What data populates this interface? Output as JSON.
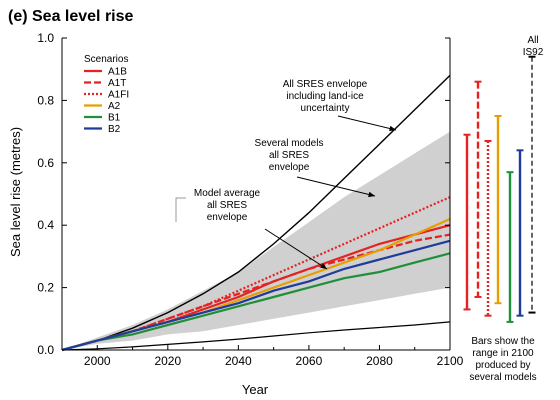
{
  "chart_data": {
    "type": "area",
    "title": "(e) Sea level rise",
    "xlabel": "Year",
    "ylabel": "Sea level rise (metres)",
    "xlim": [
      1990,
      2100
    ],
    "ylim": [
      0,
      1.0
    ],
    "xticks": [
      2000,
      2020,
      2040,
      2060,
      2080,
      2100
    ],
    "yticks": [
      0.0,
      0.2,
      0.4,
      0.6,
      0.8,
      1.0
    ],
    "grid": false,
    "legend_title": "Scenarios",
    "legend_position": "top-left",
    "envelopes": [
      {
        "label": "Several models all SRES envelope",
        "color": "#d0d0d0",
        "x": [
          1990,
          2000,
          2010,
          2020,
          2030,
          2040,
          2050,
          2060,
          2070,
          2080,
          2090,
          2100
        ],
        "lower": [
          0.0,
          0.02,
          0.03,
          0.05,
          0.06,
          0.08,
          0.1,
          0.12,
          0.14,
          0.16,
          0.18,
          0.2
        ],
        "upper": [
          0.0,
          0.04,
          0.08,
          0.13,
          0.19,
          0.25,
          0.33,
          0.41,
          0.49,
          0.56,
          0.63,
          0.7
        ]
      },
      {
        "label": "All SRES envelope including land-ice uncertainty",
        "color": "#000000",
        "x": [
          1990,
          2000,
          2010,
          2020,
          2030,
          2040,
          2050,
          2060,
          2070,
          2080,
          2090,
          2100
        ],
        "lower": [
          0.0,
          0.004,
          0.01,
          0.018,
          0.026,
          0.035,
          0.045,
          0.055,
          0.064,
          0.072,
          0.08,
          0.09
        ],
        "upper": [
          0.0,
          0.03,
          0.07,
          0.12,
          0.18,
          0.25,
          0.34,
          0.44,
          0.55,
          0.66,
          0.77,
          0.88
        ]
      }
    ],
    "series": [
      {
        "name": "A1B",
        "color": "#e32222",
        "dash": "solid",
        "x": [
          1990,
          2000,
          2010,
          2020,
          2030,
          2040,
          2050,
          2060,
          2070,
          2080,
          2090,
          2100
        ],
        "values": [
          0.0,
          0.03,
          0.06,
          0.09,
          0.13,
          0.17,
          0.22,
          0.26,
          0.3,
          0.34,
          0.37,
          0.4
        ]
      },
      {
        "name": "A1T",
        "color": "#e32222",
        "dash": "dashed",
        "x": [
          1990,
          2000,
          2010,
          2020,
          2030,
          2040,
          2050,
          2060,
          2070,
          2080,
          2090,
          2100
        ],
        "values": [
          0.0,
          0.03,
          0.06,
          0.1,
          0.14,
          0.18,
          0.22,
          0.26,
          0.29,
          0.32,
          0.35,
          0.37
        ]
      },
      {
        "name": "A1FI",
        "color": "#e32222",
        "dash": "dotted",
        "x": [
          1990,
          2000,
          2010,
          2020,
          2030,
          2040,
          2050,
          2060,
          2070,
          2080,
          2090,
          2100
        ],
        "values": [
          0.0,
          0.03,
          0.06,
          0.1,
          0.14,
          0.19,
          0.24,
          0.29,
          0.34,
          0.39,
          0.44,
          0.49
        ]
      },
      {
        "name": "A2",
        "color": "#e69f00",
        "dash": "solid",
        "x": [
          1990,
          2000,
          2010,
          2020,
          2030,
          2040,
          2050,
          2060,
          2070,
          2080,
          2090,
          2100
        ],
        "values": [
          0.0,
          0.03,
          0.06,
          0.09,
          0.12,
          0.16,
          0.2,
          0.24,
          0.28,
          0.32,
          0.37,
          0.42
        ]
      },
      {
        "name": "B1",
        "color": "#1f8f3a",
        "dash": "solid",
        "x": [
          1990,
          2000,
          2010,
          2020,
          2030,
          2040,
          2050,
          2060,
          2070,
          2080,
          2090,
          2100
        ],
        "values": [
          0.0,
          0.03,
          0.05,
          0.08,
          0.11,
          0.14,
          0.17,
          0.2,
          0.23,
          0.25,
          0.28,
          0.31
        ]
      },
      {
        "name": "B2",
        "color": "#1f3c9c",
        "dash": "solid",
        "x": [
          1990,
          2000,
          2010,
          2020,
          2030,
          2040,
          2050,
          2060,
          2070,
          2080,
          2090,
          2100
        ],
        "values": [
          0.0,
          0.03,
          0.06,
          0.09,
          0.12,
          0.15,
          0.19,
          0.22,
          0.26,
          0.29,
          0.32,
          0.35
        ]
      }
    ],
    "range_bars": [
      {
        "name": "A1B",
        "color": "#e32222",
        "dash": "solid",
        "low": 0.13,
        "high": 0.69
      },
      {
        "name": "A1T",
        "color": "#e32222",
        "dash": "dashed",
        "low": 0.17,
        "high": 0.86
      },
      {
        "name": "A1FI",
        "color": "#e32222",
        "dash": "dotted",
        "low": 0.11,
        "high": 0.67
      },
      {
        "name": "A2",
        "color": "#e69f00",
        "dash": "solid",
        "low": 0.15,
        "high": 0.75
      },
      {
        "name": "B1",
        "color": "#1f8f3a",
        "dash": "solid",
        "low": 0.09,
        "high": 0.57
      },
      {
        "name": "B2",
        "color": "#1f3c9c",
        "dash": "solid",
        "low": 0.11,
        "high": 0.64
      },
      {
        "name": "All IS92",
        "color": "#000000",
        "dash": "dashed",
        "low": 0.12,
        "high": 0.94
      }
    ],
    "annotations": {
      "all_sres": [
        "All SRES envelope",
        "including land-ice",
        "uncertainty"
      ],
      "several_models": [
        "Several models",
        "all SRES",
        "envelope"
      ],
      "model_average": [
        "Model average",
        "all SRES",
        "envelope"
      ],
      "all_is92": [
        "All",
        "IS92"
      ],
      "bars_note": [
        "Bars show the",
        "range in 2100",
        "produced by",
        "several models"
      ]
    }
  }
}
